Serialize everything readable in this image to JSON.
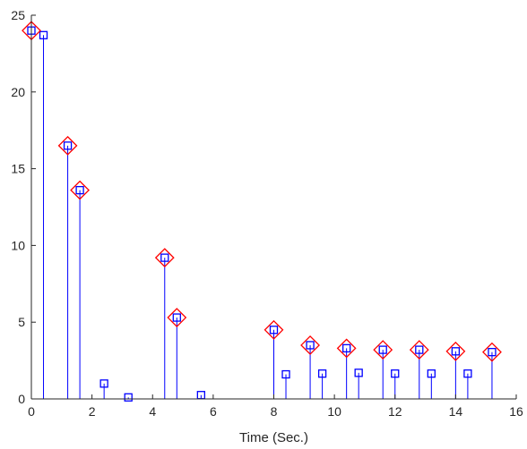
{
  "chart_data": {
    "type": "stem",
    "title": "",
    "xlabel": "Time (Sec.)",
    "ylabel": "",
    "xlim": [
      0,
      16
    ],
    "ylim": [
      0,
      25
    ],
    "xticks": [
      0,
      2,
      4,
      6,
      8,
      10,
      12,
      14,
      16
    ],
    "yticks": [
      0,
      5,
      10,
      15,
      20,
      25
    ],
    "grid": false,
    "legend": "none",
    "series": [
      {
        "marker": "square",
        "color": "#0000ff",
        "stems": true,
        "x": [
          0,
          0.4,
          1.2,
          1.6,
          2.4,
          3.2,
          4.4,
          4.8,
          5.6,
          8.0,
          8.4,
          9.2,
          9.6,
          10.4,
          10.8,
          11.6,
          12.0,
          12.8,
          13.2,
          14.0,
          14.4,
          15.2
        ],
        "y": [
          24.0,
          23.7,
          16.5,
          13.6,
          1.0,
          0.1,
          9.2,
          5.3,
          0.25,
          4.5,
          1.6,
          3.5,
          1.65,
          3.3,
          1.7,
          3.2,
          1.65,
          3.2,
          1.65,
          3.1,
          1.65,
          3.05
        ]
      },
      {
        "marker": "diamond",
        "color": "#ff0000",
        "stems": false,
        "x": [
          0,
          1.2,
          1.6,
          4.4,
          4.8,
          8.0,
          9.2,
          10.4,
          11.6,
          12.8,
          14.0,
          15.2
        ],
        "y": [
          24.0,
          16.5,
          13.6,
          9.2,
          5.3,
          4.5,
          3.5,
          3.3,
          3.2,
          3.2,
          3.1,
          3.05
        ]
      }
    ]
  }
}
